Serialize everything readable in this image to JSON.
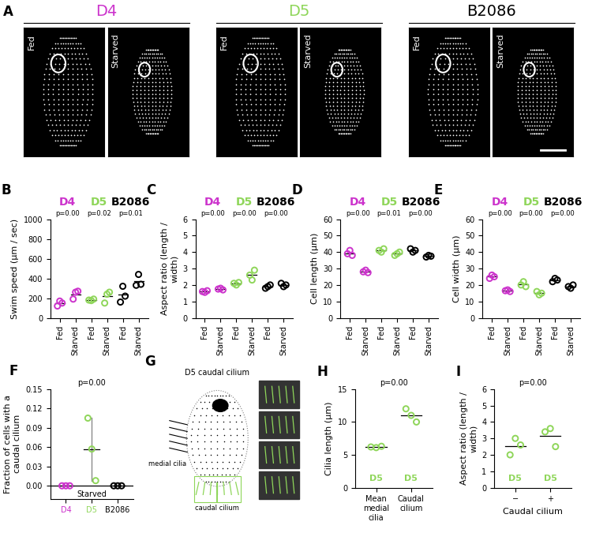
{
  "chart_data": [
    {
      "type": "dot",
      "panel": "B",
      "y_label": "Swim speed (µm / sec)",
      "categories": [
        "Fed",
        "Starved",
        "Fed",
        "Starved",
        "Fed",
        "Starved"
      ],
      "colors": [
        "#cc33cc",
        "#cc33cc",
        "#8fd65a",
        "#8fd65a",
        "#000000",
        "#000000"
      ],
      "group_labels": [
        "D4",
        "D5",
        "B2086"
      ],
      "group_colors": [
        "#cc33cc",
        "#8fd65a",
        "#000000"
      ],
      "p_values": [
        "p=0.00",
        "p=0.02",
        "p=0.01"
      ],
      "values": [
        [
          120,
          170,
          150
        ],
        [
          190,
          260,
          270
        ],
        [
          180,
          175,
          190
        ],
        [
          150,
          240,
          260
        ],
        [
          160,
          320,
          220
        ],
        [
          330,
          440,
          340
        ]
      ],
      "ylim": [
        0,
        1000
      ],
      "yticks": [
        0,
        200,
        400,
        600,
        800,
        1000
      ]
    },
    {
      "type": "dot",
      "panel": "C",
      "y_label": "Aspect ratio (length / width)",
      "categories": [
        "Fed",
        "Starved",
        "Fed",
        "Starved",
        "Fed",
        "Starved"
      ],
      "colors": [
        "#cc33cc",
        "#cc33cc",
        "#8fd65a",
        "#8fd65a",
        "#000000",
        "#000000"
      ],
      "group_labels": [
        "D4",
        "D5",
        "B2086"
      ],
      "group_colors": [
        "#cc33cc",
        "#8fd65a",
        "#000000"
      ],
      "p_values": [
        "p=0.00",
        "p=0.00",
        "p=0.00"
      ],
      "values": [
        [
          1.6,
          1.55,
          1.65
        ],
        [
          1.75,
          1.8,
          1.7
        ],
        [
          2.1,
          2.0,
          2.15
        ],
        [
          2.6,
          2.3,
          2.9
        ],
        [
          1.8,
          1.9,
          2.0
        ],
        [
          2.1,
          1.9,
          2.0
        ]
      ],
      "ylim": [
        0,
        6
      ],
      "yticks": [
        0,
        1,
        2,
        3,
        4,
        5,
        6
      ]
    },
    {
      "type": "dot",
      "panel": "D",
      "y_label": "Cell length (µm)",
      "categories": [
        "Fed",
        "Starved",
        "Fed",
        "Starved",
        "Fed",
        "Starved"
      ],
      "colors": [
        "#cc33cc",
        "#cc33cc",
        "#8fd65a",
        "#8fd65a",
        "#000000",
        "#000000"
      ],
      "group_labels": [
        "D4",
        "D5",
        "B2086"
      ],
      "group_colors": [
        "#cc33cc",
        "#8fd65a",
        "#000000"
      ],
      "p_values": [
        "p=0.00",
        "p=0.01",
        "p=0.00"
      ],
      "values": [
        [
          39,
          41,
          38
        ],
        [
          28,
          29,
          27.5
        ],
        [
          41,
          40,
          42
        ],
        [
          38,
          39,
          40
        ],
        [
          42,
          40,
          41
        ],
        [
          37,
          38,
          37.5
        ]
      ],
      "ylim": [
        0,
        60
      ],
      "yticks": [
        0,
        10,
        20,
        30,
        40,
        50,
        60
      ]
    },
    {
      "type": "dot",
      "panel": "E",
      "y_label": "Cell width (µm)",
      "categories": [
        "Fed",
        "Starved",
        "Fed",
        "Starved",
        "Fed",
        "Starved"
      ],
      "colors": [
        "#cc33cc",
        "#cc33cc",
        "#8fd65a",
        "#8fd65a",
        "#000000",
        "#000000"
      ],
      "group_labels": [
        "D4",
        "D5",
        "B2086"
      ],
      "group_colors": [
        "#cc33cc",
        "#8fd65a",
        "#000000"
      ],
      "p_values": [
        "p=0.00",
        "p=0.00",
        "p=0.00"
      ],
      "values": [
        [
          24,
          26,
          25
        ],
        [
          16.5,
          17,
          16
        ],
        [
          20,
          22,
          19
        ],
        [
          16,
          14,
          15
        ],
        [
          22,
          24,
          23
        ],
        [
          19,
          18,
          20
        ]
      ],
      "ylim": [
        0,
        60
      ],
      "yticks": [
        0,
        10,
        20,
        30,
        40,
        50,
        60
      ]
    },
    {
      "type": "dot_range",
      "panel": "F",
      "y_label": "Fraction of cells with a caudal cilium",
      "subtitle": "Starved",
      "categories": [
        "D4",
        "D5",
        "B2086"
      ],
      "colors": [
        "#cc33cc",
        "#8fd65a",
        "#000000"
      ],
      "p_values": [
        "p=0.00"
      ],
      "values": [
        [
          0,
          0,
          0
        ],
        [
          0.105,
          0.057,
          0.008
        ],
        [
          0,
          0,
          0
        ]
      ],
      "ylim": [
        -0.02,
        0.15
      ],
      "yticks": [
        {
          "value": 0,
          "label": "0.00"
        },
        {
          "value": 0.03,
          "label": "0.03"
        },
        {
          "value": 0.06,
          "label": "0.06"
        },
        {
          "value": 0.09,
          "label": "0.09"
        },
        {
          "value": 0.12,
          "label": "0.12"
        },
        {
          "value": 0.15,
          "label": "0.15"
        }
      ]
    },
    {
      "type": "dot",
      "panel": "H",
      "y_label": "Cilia length (µm)",
      "categories": [
        "Mean medial cilia",
        "Caudal cilium"
      ],
      "colors": [
        "#8fd65a",
        "#8fd65a"
      ],
      "point_labels": [
        "D5",
        "D5"
      ],
      "p_values": [
        "p=0.00"
      ],
      "values": [
        [
          6.2,
          6.1,
          6.3
        ],
        [
          12,
          11,
          10
        ]
      ],
      "ylim": [
        0,
        15
      ],
      "yticks": [
        0,
        5,
        10,
        15
      ]
    },
    {
      "type": "dot",
      "panel": "I",
      "y_label": "Aspect ratio (length / width)",
      "x_label": "Caudal cilium",
      "categories": [
        "−",
        "+"
      ],
      "colors": [
        "#8fd65a",
        "#8fd65a"
      ],
      "point_labels": [
        "D5",
        "D5"
      ],
      "p_values": [
        "p=0.00"
      ],
      "values": [
        [
          2.0,
          3.0,
          2.6
        ],
        [
          3.4,
          3.6,
          2.5
        ]
      ],
      "ylim": [
        0,
        6
      ],
      "yticks": [
        0,
        1,
        2,
        3,
        4,
        5,
        6
      ]
    }
  ],
  "panel_A": {
    "panel": "A",
    "strains": [
      {
        "name": "D4",
        "color": "#cc33cc",
        "images": [
          "Fed",
          "Starved"
        ]
      },
      {
        "name": "D5",
        "color": "#8fd65a",
        "images": [
          "Fed",
          "Starved"
        ]
      },
      {
        "name": "B2086",
        "color": "#000000",
        "images": [
          "Fed",
          "Starved"
        ]
      }
    ]
  },
  "panel_G": {
    "panel": "G",
    "title": "D5 caudal cilium",
    "labels": [
      "medial cilia",
      "caudal cilium"
    ]
  }
}
